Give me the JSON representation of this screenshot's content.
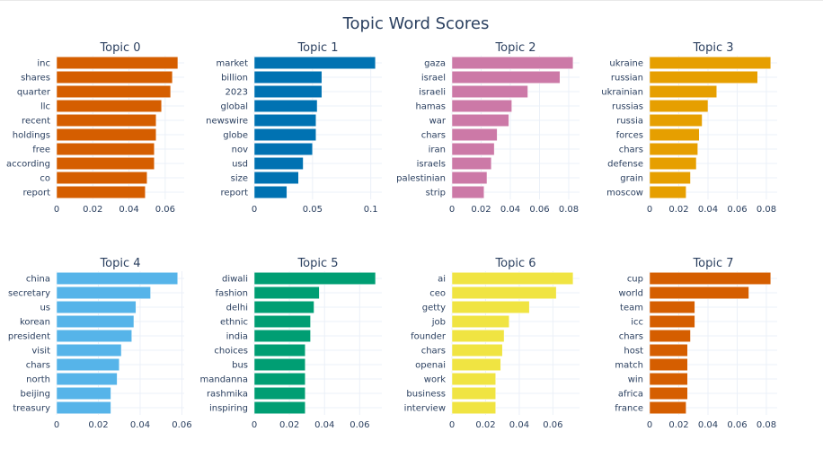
{
  "chart_data": {
    "type": "bar",
    "orientation": "horizontal",
    "title": "Topic Word Scores",
    "grid": true,
    "legend": "none",
    "subplots": [
      {
        "title": "Topic 0",
        "color": "#D55E00",
        "categories": [
          "inc",
          "shares",
          "quarter",
          "llc",
          "recent",
          "holdings",
          "free",
          "according",
          "co",
          "report"
        ],
        "values": [
          0.067,
          0.064,
          0.063,
          0.058,
          0.055,
          0.055,
          0.054,
          0.054,
          0.05,
          0.049
        ],
        "xticks": [
          0,
          0.02,
          0.04,
          0.06
        ],
        "xtick_labels": [
          "0",
          "0.02",
          "0.04",
          "0.06"
        ],
        "xlim": [
          0,
          0.0705
        ]
      },
      {
        "title": "Topic 1",
        "color": "#0072B2",
        "categories": [
          "market",
          "billion",
          "2023",
          "global",
          "newswire",
          "globe",
          "nov",
          "usd",
          "size",
          "report"
        ],
        "values": [
          0.104,
          0.058,
          0.058,
          0.054,
          0.053,
          0.053,
          0.05,
          0.042,
          0.038,
          0.028
        ],
        "xticks": [
          0,
          0.05,
          0.1
        ],
        "xtick_labels": [
          "0",
          "0.05",
          "0.1"
        ],
        "xlim": [
          0,
          0.1095
        ]
      },
      {
        "title": "Topic 2",
        "color": "#CC79A7",
        "categories": [
          "gaza",
          "israel",
          "israeli",
          "hamas",
          "war",
          "chars",
          "iran",
          "israels",
          "palestinian",
          "strip"
        ],
        "values": [
          0.083,
          0.074,
          0.052,
          0.041,
          0.039,
          0.031,
          0.029,
          0.027,
          0.024,
          0.022
        ],
        "xticks": [
          0,
          0.02,
          0.04,
          0.06,
          0.08
        ],
        "xtick_labels": [
          "0",
          "0.02",
          "0.04",
          "0.06",
          "0.08"
        ],
        "xlim": [
          0,
          0.0874
        ]
      },
      {
        "title": "Topic 3",
        "color": "#E69F00",
        "categories": [
          "ukraine",
          "russian",
          "ukrainian",
          "russias",
          "russia",
          "forces",
          "chars",
          "defense",
          "grain",
          "moscow"
        ],
        "values": [
          0.083,
          0.074,
          0.046,
          0.04,
          0.036,
          0.034,
          0.033,
          0.032,
          0.028,
          0.025
        ],
        "xticks": [
          0,
          0.02,
          0.04,
          0.06,
          0.08
        ],
        "xtick_labels": [
          "0",
          "0.02",
          "0.04",
          "0.06",
          "0.08"
        ],
        "xlim": [
          0,
          0.0874
        ]
      },
      {
        "title": "Topic 4",
        "color": "#56B4E9",
        "categories": [
          "china",
          "secretary",
          "us",
          "korean",
          "president",
          "visit",
          "chars",
          "north",
          "beijing",
          "treasury"
        ],
        "values": [
          0.058,
          0.045,
          0.038,
          0.037,
          0.036,
          0.031,
          0.03,
          0.029,
          0.026,
          0.026
        ],
        "xticks": [
          0,
          0.02,
          0.04,
          0.06
        ],
        "xtick_labels": [
          "0",
          "0.02",
          "0.04",
          "0.06"
        ],
        "xlim": [
          0,
          0.0611
        ]
      },
      {
        "title": "Topic 5",
        "color": "#009E73",
        "categories": [
          "diwali",
          "fashion",
          "delhi",
          "ethnic",
          "india",
          "choices",
          "bus",
          "mandanna",
          "rashmika",
          "inspiring"
        ],
        "values": [
          0.069,
          0.037,
          0.034,
          0.032,
          0.032,
          0.029,
          0.029,
          0.029,
          0.029,
          0.029
        ],
        "xticks": [
          0,
          0.02,
          0.04,
          0.06
        ],
        "xtick_labels": [
          "0",
          "0.02",
          "0.04",
          "0.06"
        ],
        "xlim": [
          0,
          0.0726
        ]
      },
      {
        "title": "Topic 6",
        "color": "#F0E442",
        "categories": [
          "ai",
          "ceo",
          "getty",
          "job",
          "founder",
          "chars",
          "openai",
          "work",
          "business",
          "interview"
        ],
        "values": [
          0.072,
          0.062,
          0.046,
          0.034,
          0.031,
          0.03,
          0.029,
          0.026,
          0.026,
          0.026
        ],
        "xticks": [
          0,
          0.02,
          0.04,
          0.06
        ],
        "xtick_labels": [
          "0",
          "0.02",
          "0.04",
          "0.06"
        ],
        "xlim": [
          0,
          0.0758
        ]
      },
      {
        "title": "Topic 7",
        "color": "#D55E00",
        "categories": [
          "cup",
          "world",
          "team",
          "icc",
          "chars",
          "host",
          "match",
          "win",
          "africa",
          "france"
        ],
        "values": [
          0.083,
          0.068,
          0.031,
          0.031,
          0.028,
          0.026,
          0.026,
          0.026,
          0.026,
          0.025
        ],
        "xticks": [
          0,
          0.02,
          0.04,
          0.06,
          0.08
        ],
        "xtick_labels": [
          "0",
          "0.02",
          "0.04",
          "0.06",
          "0.08"
        ],
        "xlim": [
          0,
          0.0874
        ]
      }
    ]
  }
}
